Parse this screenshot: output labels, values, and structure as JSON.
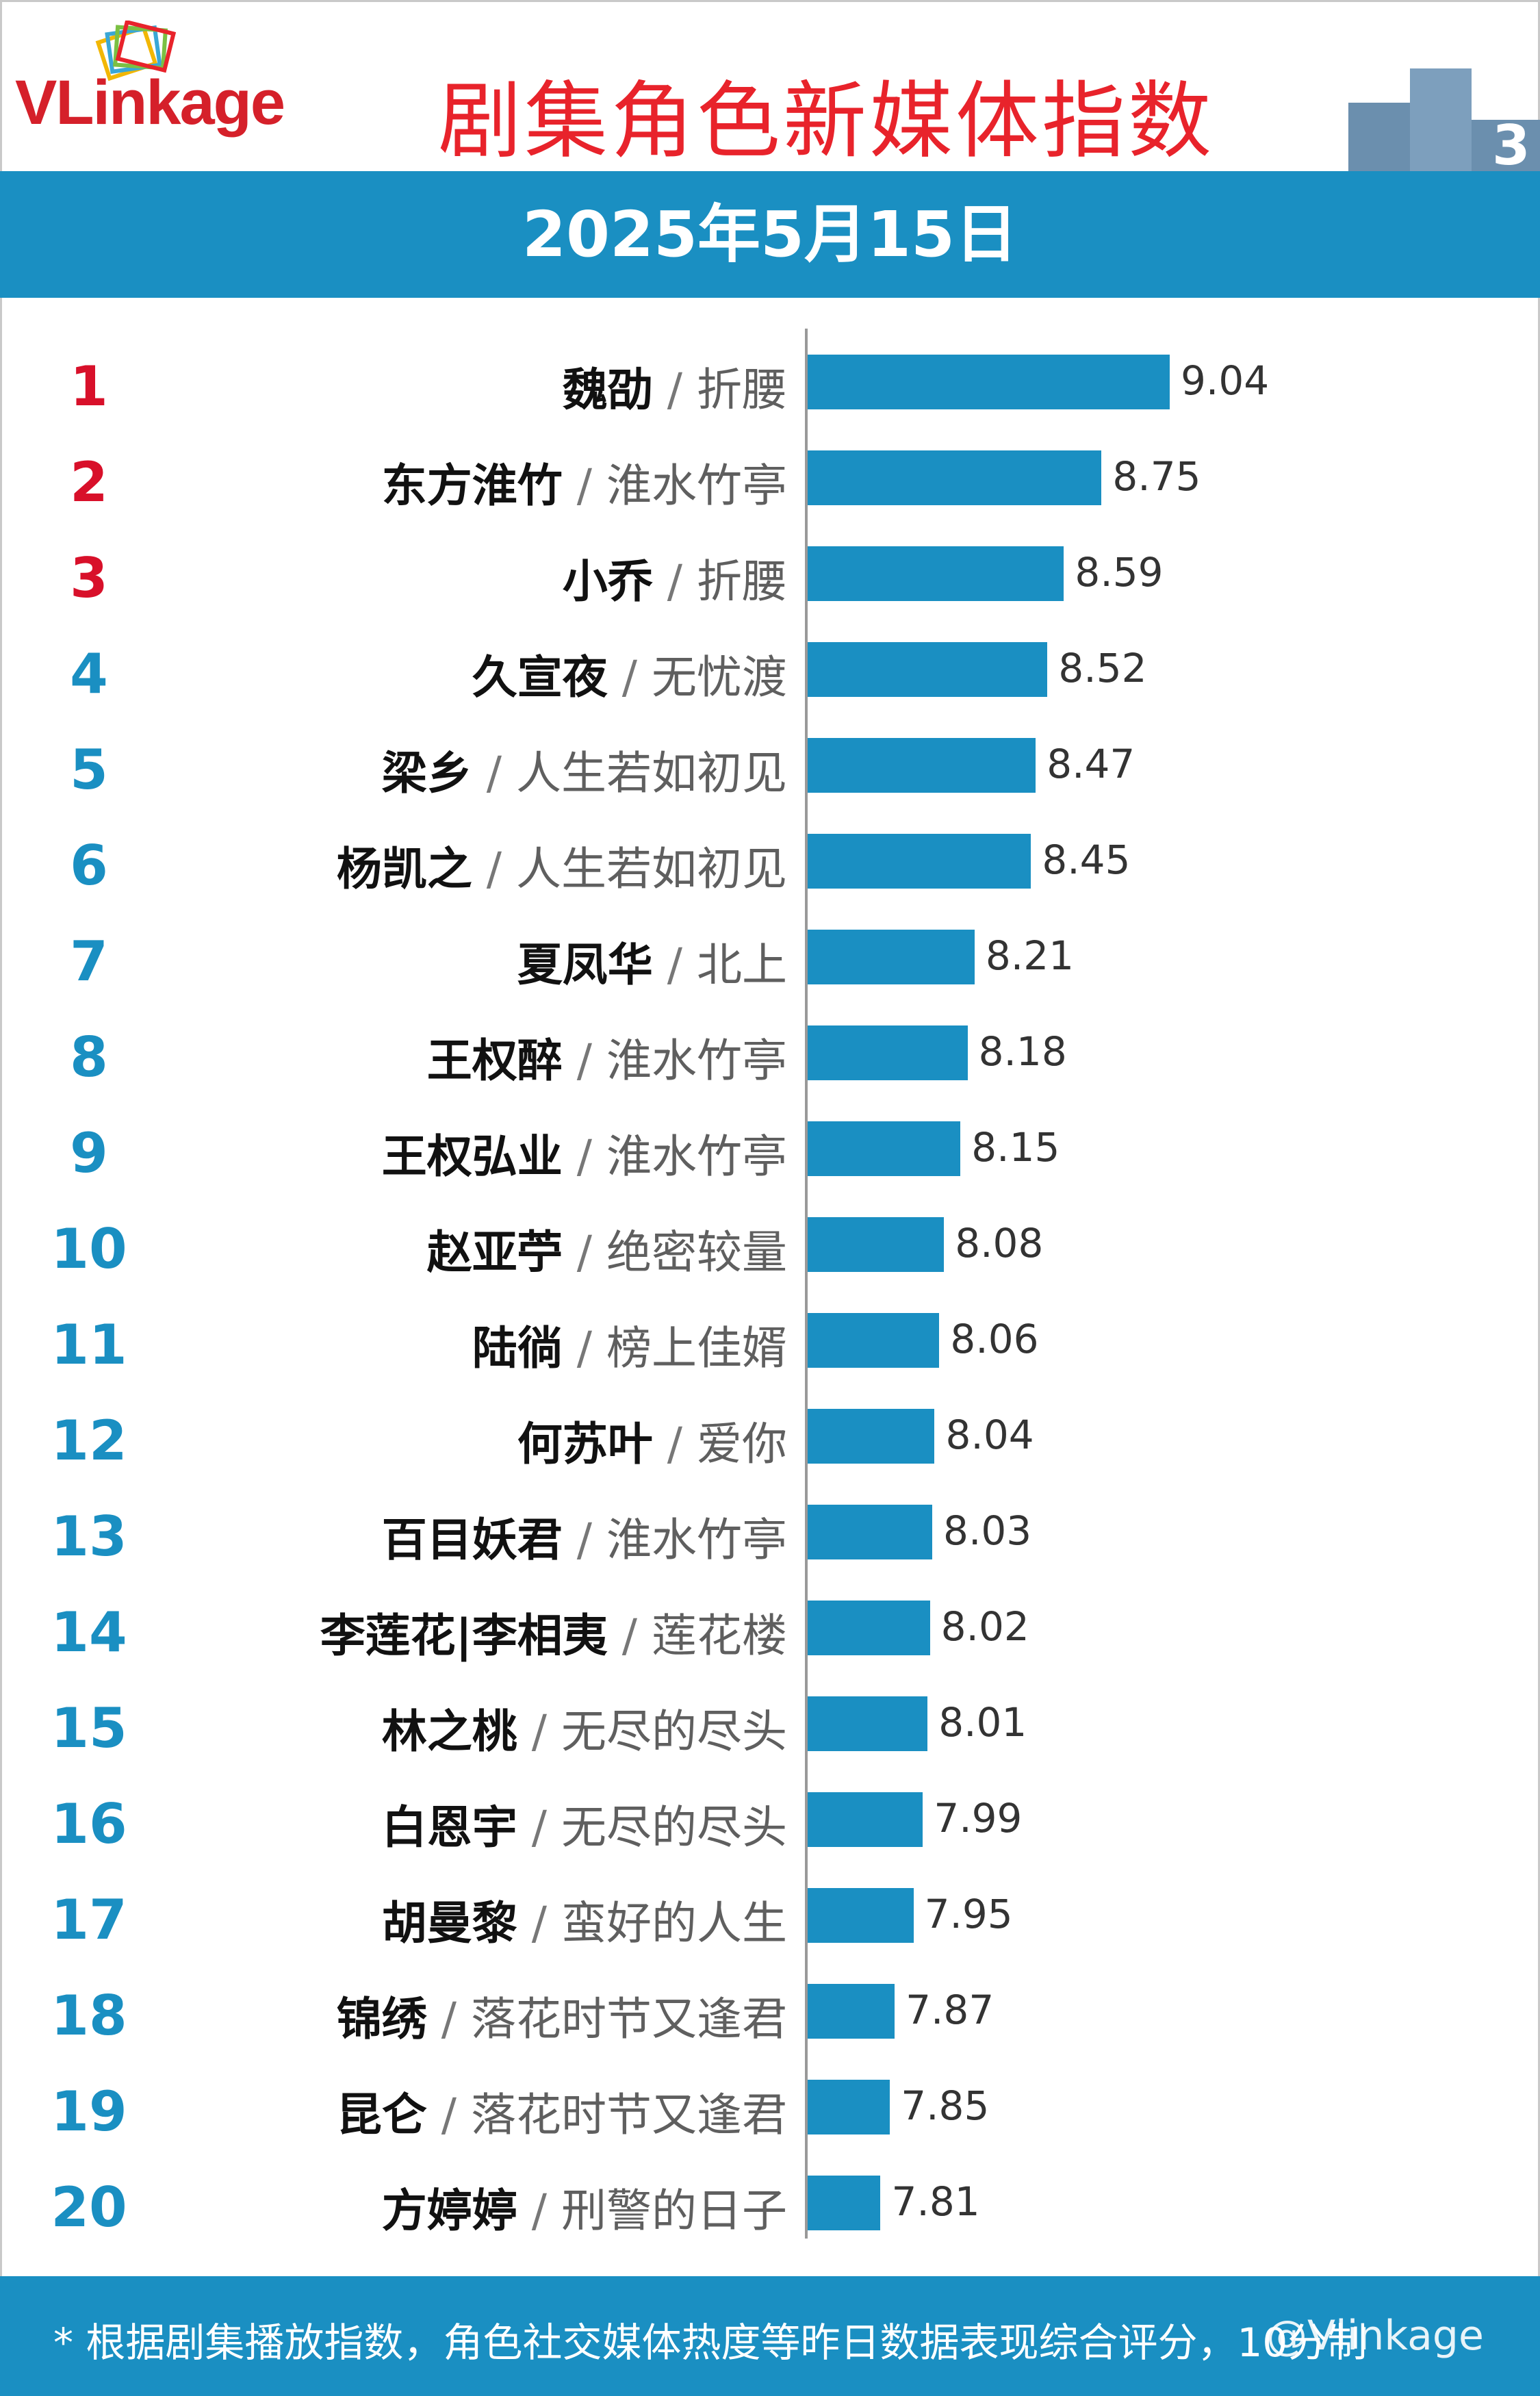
{
  "header": {
    "logo_text": "VLinkage",
    "title": "剧集角色新媒体指数",
    "date": "2025年5月15日",
    "podium_icon": "podium-icon"
  },
  "colors": {
    "accent": "#1a8fc2",
    "title_red": "#e8232b",
    "top_rank_red": "#d8102a",
    "rank_blue": "#1a8fc2"
  },
  "chart_data": {
    "type": "bar",
    "orientation": "horizontal",
    "title": "剧集角色新媒体指数",
    "subtitle": "2025年5月15日",
    "xlabel": "",
    "ylabel": "",
    "xlim": [
      7.5,
      9.2
    ],
    "grid": false,
    "legend": "none",
    "categories": [
      "魏劭 / 折腰",
      "东方淮竹 / 淮水竹亭",
      "小乔 / 折腰",
      "久宣夜 / 无忧渡",
      "梁乡 / 人生若如初见",
      "杨凯之 / 人生若如初见",
      "夏凤华 / 北上",
      "王权醉 / 淮水竹亭",
      "王权弘业 / 淮水竹亭",
      "赵亚苧 / 绝密较量",
      "陆徜 / 榜上佳婿",
      "何苏叶 / 爱你",
      "百目妖君 / 淮水竹亭",
      "李莲花|李相夷 / 莲花楼",
      "林之桃 / 无尽的尽头",
      "白恩宇 / 无尽的尽头",
      "胡曼黎 / 蛮好的人生",
      "锦绣 / 落花时节又逢君",
      "昆仑 / 落花时节又逢君",
      "方婷婷 / 刑警的日子"
    ],
    "values": [
      9.04,
      8.75,
      8.59,
      8.52,
      8.47,
      8.45,
      8.21,
      8.18,
      8.15,
      8.08,
      8.06,
      8.04,
      8.03,
      8.02,
      8.01,
      7.99,
      7.95,
      7.87,
      7.85,
      7.81
    ],
    "rows": [
      {
        "rank": "1",
        "name": "魏劭",
        "show": "折腰",
        "value": "9.04"
      },
      {
        "rank": "2",
        "name": "东方淮竹",
        "show": "淮水竹亭",
        "value": "8.75"
      },
      {
        "rank": "3",
        "name": "小乔",
        "show": "折腰",
        "value": "8.59"
      },
      {
        "rank": "4",
        "name": "久宣夜",
        "show": "无忧渡",
        "value": "8.52"
      },
      {
        "rank": "5",
        "name": "梁乡",
        "show": "人生若如初见",
        "value": "8.47"
      },
      {
        "rank": "6",
        "name": "杨凯之",
        "show": "人生若如初见",
        "value": "8.45"
      },
      {
        "rank": "7",
        "name": "夏凤华",
        "show": "北上",
        "value": "8.21"
      },
      {
        "rank": "8",
        "name": "王权醉",
        "show": "淮水竹亭",
        "value": "8.18"
      },
      {
        "rank": "9",
        "name": "王权弘业",
        "show": "淮水竹亭",
        "value": "8.15"
      },
      {
        "rank": "10",
        "name": "赵亚苧",
        "show": "绝密较量",
        "value": "8.08"
      },
      {
        "rank": "11",
        "name": "陆徜",
        "show": "榜上佳婿",
        "value": "8.06"
      },
      {
        "rank": "12",
        "name": "何苏叶",
        "show": "爱你",
        "value": "8.04"
      },
      {
        "rank": "13",
        "name": "百目妖君",
        "show": "淮水竹亭",
        "value": "8.03"
      },
      {
        "rank": "14",
        "name": "李莲花|李相夷",
        "show": "莲花楼",
        "value": "8.02"
      },
      {
        "rank": "15",
        "name": "林之桃",
        "show": "无尽的尽头",
        "value": "8.01"
      },
      {
        "rank": "16",
        "name": "白恩宇",
        "show": "无尽的尽头",
        "value": "7.99"
      },
      {
        "rank": "17",
        "name": "胡曼黎",
        "show": "蛮好的人生",
        "value": "7.95"
      },
      {
        "rank": "18",
        "name": "锦绣",
        "show": "落花时节又逢君",
        "value": "7.87"
      },
      {
        "rank": "19",
        "name": "昆仑",
        "show": "落花时节又逢君",
        "value": "7.85"
      },
      {
        "rank": "20",
        "name": "方婷婷",
        "show": "刑警的日子",
        "value": "7.81"
      }
    ]
  },
  "footer": {
    "note": "* 根据剧集播放指数，角色社交媒体热度等昨日数据表现综合评分，10分制",
    "watermark": "@Vlinkage"
  }
}
